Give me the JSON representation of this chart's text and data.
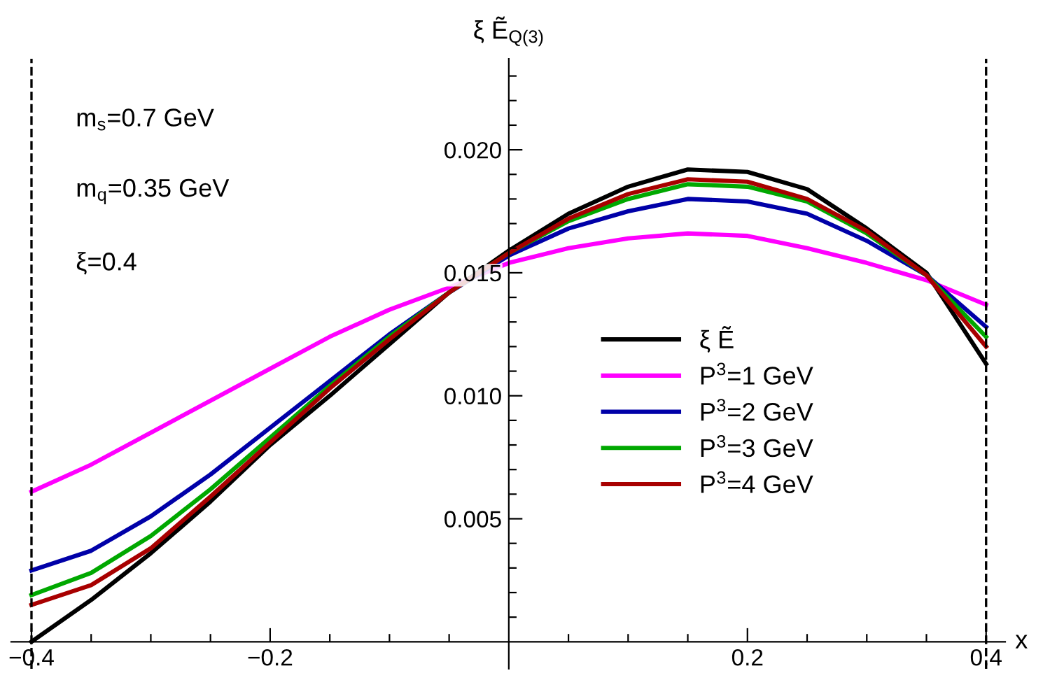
{
  "chart_data": {
    "type": "line",
    "xlabel": "x",
    "ylabel": "ξ Ẽ$_{Q(3)}$",
    "annotations": [
      "m$_{s}$=0.7 GeV",
      "m$_{q}$=0.35 GeV",
      "ξ=0.4"
    ],
    "xlim": [
      -0.417,
      0.416
    ],
    "ylim": [
      -0.0011,
      0.0237
    ],
    "xticks": [
      {
        "value": -0.4,
        "label": "−0.4"
      },
      {
        "value": -0.35,
        "label": null
      },
      {
        "value": -0.3,
        "label": null
      },
      {
        "value": -0.25,
        "label": null
      },
      {
        "value": -0.2,
        "label": "−0.2"
      },
      {
        "value": -0.15,
        "label": null
      },
      {
        "value": -0.1,
        "label": null
      },
      {
        "value": -0.05,
        "label": null
      },
      {
        "value": 0.05,
        "label": null
      },
      {
        "value": 0.1,
        "label": null
      },
      {
        "value": 0.15,
        "label": null
      },
      {
        "value": 0.2,
        "label": "0.2"
      },
      {
        "value": 0.25,
        "label": null
      },
      {
        "value": 0.3,
        "label": null
      },
      {
        "value": 0.35,
        "label": null
      },
      {
        "value": 0.4,
        "label": "0.4"
      }
    ],
    "yticks": [
      {
        "value": 0.001,
        "label": null
      },
      {
        "value": 0.002,
        "label": null
      },
      {
        "value": 0.003,
        "label": null
      },
      {
        "value": 0.004,
        "label": null
      },
      {
        "value": 0.005,
        "label": "0.005"
      },
      {
        "value": 0.006,
        "label": null
      },
      {
        "value": 0.007,
        "label": null
      },
      {
        "value": 0.008,
        "label": null
      },
      {
        "value": 0.009,
        "label": null
      },
      {
        "value": 0.01,
        "label": "0.010"
      },
      {
        "value": 0.011,
        "label": null
      },
      {
        "value": 0.012,
        "label": null
      },
      {
        "value": 0.013,
        "label": null
      },
      {
        "value": 0.014,
        "label": null
      },
      {
        "value": 0.015,
        "label": "0.015"
      },
      {
        "value": 0.016,
        "label": null
      },
      {
        "value": 0.017,
        "label": null
      },
      {
        "value": 0.018,
        "label": null
      },
      {
        "value": 0.019,
        "label": null
      },
      {
        "value": 0.02,
        "label": "0.020"
      },
      {
        "value": 0.021,
        "label": null
      },
      {
        "value": 0.022,
        "label": null
      },
      {
        "value": 0.023,
        "label": null
      }
    ],
    "ref_lines": [
      {
        "axis": "x",
        "value": -0.4,
        "color": "#000000",
        "line_style": "dashed"
      },
      {
        "axis": "x",
        "value": 0.4,
        "color": "#000000",
        "line_style": "dashed"
      }
    ],
    "legend": "right",
    "marker": "none",
    "line_style": "solid",
    "x": [
      -0.4,
      -0.35,
      -0.3,
      -0.25,
      -0.2,
      -0.15,
      -0.1,
      -0.05,
      0,
      0.05,
      0.1,
      0.15,
      0.2,
      0.25,
      0.3,
      0.35,
      0.4
    ],
    "series": [
      {
        "name": "ξ Ẽ",
        "color": "#000000",
        "values": [
          0,
          0.0017,
          0.0036,
          0.0057,
          0.008,
          0.01,
          0.0121,
          0.0142,
          0.0159,
          0.0174,
          0.0185,
          0.0192,
          0.0191,
          0.0184,
          0.0168,
          0.015,
          0.0113
        ]
      },
      {
        "name": "P$^{3}$=1 GeV",
        "color": "#ff00ff",
        "values": [
          0.0061,
          0.0072,
          0.0085,
          0.0098,
          0.0111,
          0.0124,
          0.0135,
          0.0144,
          0.0154,
          0.016,
          0.0164,
          0.0166,
          0.0165,
          0.016,
          0.0154,
          0.0147,
          0.0137
        ]
      },
      {
        "name": "P$^{3}$=2 GeV",
        "color": "#0000a8",
        "values": [
          0.0029,
          0.0037,
          0.0051,
          0.0068,
          0.0087,
          0.0106,
          0.0125,
          0.0142,
          0.0157,
          0.0168,
          0.0175,
          0.018,
          0.0179,
          0.0174,
          0.0163,
          0.0149,
          0.0128
        ]
      },
      {
        "name": "P$^{3}$=3 GeV",
        "color": "#00a800",
        "values": [
          0.0019,
          0.0028,
          0.0043,
          0.0062,
          0.0083,
          0.0104,
          0.0124,
          0.0142,
          0.0158,
          0.0171,
          0.018,
          0.0186,
          0.0185,
          0.0179,
          0.0166,
          0.0149,
          0.0124
        ]
      },
      {
        "name": "P$^{3}$=4 GeV",
        "color": "#a80000",
        "values": [
          0.0015,
          0.0023,
          0.0038,
          0.0059,
          0.0081,
          0.0103,
          0.0123,
          0.0142,
          0.0158,
          0.0172,
          0.0182,
          0.0188,
          0.0187,
          0.018,
          0.0167,
          0.0149,
          0.012
        ]
      }
    ]
  }
}
